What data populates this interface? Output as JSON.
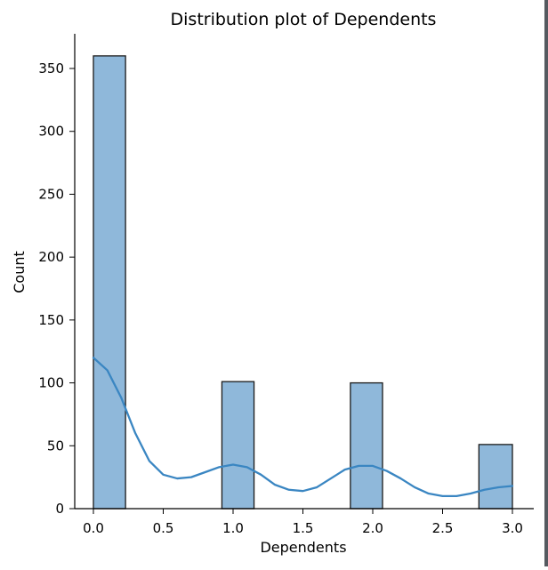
{
  "chart_data": {
    "type": "bar",
    "title": "Distribution plot of Dependents",
    "xlabel": "Dependents",
    "ylabel": "Count",
    "xlim": [
      -0.15,
      3.15
    ],
    "ylim": [
      0,
      380
    ],
    "xticks": [
      "0.0",
      "0.5",
      "1.0",
      "1.5",
      "2.0",
      "2.5",
      "3.0"
    ],
    "yticks": [
      "0",
      "50",
      "100",
      "150",
      "200",
      "250",
      "300",
      "350"
    ],
    "bins": [
      {
        "start": 0.0,
        "end": 0.23,
        "value": 360
      },
      {
        "start": 0.23,
        "end": 0.46,
        "value": 0
      },
      {
        "start": 0.46,
        "end": 0.69,
        "value": 0
      },
      {
        "start": 0.69,
        "end": 0.92,
        "value": 0
      },
      {
        "start": 0.92,
        "end": 1.15,
        "value": 101
      },
      {
        "start": 1.15,
        "end": 1.38,
        "value": 0
      },
      {
        "start": 1.38,
        "end": 1.61,
        "value": 0
      },
      {
        "start": 1.61,
        "end": 1.84,
        "value": 0
      },
      {
        "start": 1.84,
        "end": 2.07,
        "value": 100
      },
      {
        "start": 2.07,
        "end": 2.3,
        "value": 0
      },
      {
        "start": 2.3,
        "end": 2.53,
        "value": 0
      },
      {
        "start": 2.53,
        "end": 2.76,
        "value": 0
      },
      {
        "start": 2.76,
        "end": 3.0,
        "value": 51
      }
    ],
    "kde": [
      {
        "x": 0.0,
        "y": 120
      },
      {
        "x": 0.1,
        "y": 110
      },
      {
        "x": 0.2,
        "y": 88
      },
      {
        "x": 0.3,
        "y": 60
      },
      {
        "x": 0.4,
        "y": 38
      },
      {
        "x": 0.5,
        "y": 27
      },
      {
        "x": 0.6,
        "y": 24
      },
      {
        "x": 0.7,
        "y": 25
      },
      {
        "x": 0.8,
        "y": 29
      },
      {
        "x": 0.9,
        "y": 33
      },
      {
        "x": 1.0,
        "y": 35
      },
      {
        "x": 1.1,
        "y": 33
      },
      {
        "x": 1.2,
        "y": 27
      },
      {
        "x": 1.3,
        "y": 19
      },
      {
        "x": 1.4,
        "y": 15
      },
      {
        "x": 1.5,
        "y": 14
      },
      {
        "x": 1.6,
        "y": 17
      },
      {
        "x": 1.7,
        "y": 24
      },
      {
        "x": 1.8,
        "y": 31
      },
      {
        "x": 1.9,
        "y": 34
      },
      {
        "x": 2.0,
        "y": 34
      },
      {
        "x": 2.1,
        "y": 30
      },
      {
        "x": 2.2,
        "y": 24
      },
      {
        "x": 2.3,
        "y": 17
      },
      {
        "x": 2.4,
        "y": 12
      },
      {
        "x": 2.5,
        "y": 10
      },
      {
        "x": 2.6,
        "y": 10
      },
      {
        "x": 2.7,
        "y": 12
      },
      {
        "x": 2.8,
        "y": 15
      },
      {
        "x": 2.9,
        "y": 17
      },
      {
        "x": 3.0,
        "y": 18
      }
    ],
    "colors": {
      "bar_fill": "#8fb8da",
      "bar_edge": "#1a1a1a",
      "kde_line": "#3a86c2",
      "axis": "#000000"
    },
    "grid": false,
    "legend": "none"
  }
}
